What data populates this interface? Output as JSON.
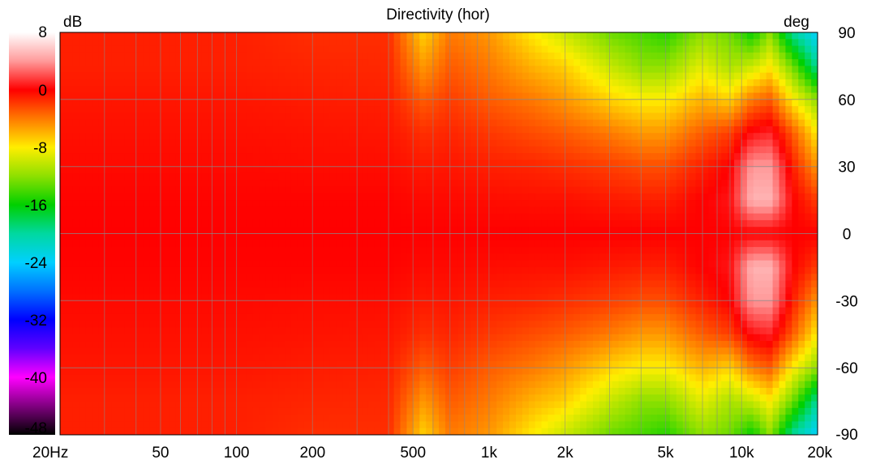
{
  "chart_data": {
    "type": "heatmap",
    "title": "Directivity (hor)",
    "colorbar": {
      "unit": "dB",
      "ticks": [
        "8",
        "0",
        "-8",
        "-16",
        "-24",
        "-32",
        "-40",
        "-48"
      ],
      "range": [
        -48,
        8
      ],
      "stops": [
        {
          "value": 8,
          "color": "#ffffff"
        },
        {
          "value": 4,
          "color": "#ff9a9a"
        },
        {
          "value": 0,
          "color": "#ff0000"
        },
        {
          "value": -4,
          "color": "#ff7a00"
        },
        {
          "value": -8,
          "color": "#ffee00"
        },
        {
          "value": -12,
          "color": "#8ee000"
        },
        {
          "value": -16,
          "color": "#00d000"
        },
        {
          "value": -20,
          "color": "#00d8a0"
        },
        {
          "value": -24,
          "color": "#00d0ff"
        },
        {
          "value": -28,
          "color": "#0070ff"
        },
        {
          "value": -32,
          "color": "#0000ff"
        },
        {
          "value": -36,
          "color": "#6000ff"
        },
        {
          "value": -40,
          "color": "#ff00ff"
        },
        {
          "value": -44,
          "color": "#800080"
        },
        {
          "value": -48,
          "color": "#000000"
        }
      ]
    },
    "x_axis": {
      "scale": "log",
      "range": [
        20,
        20000
      ],
      "unit": "Hz",
      "tick_labels": [
        {
          "value": 20,
          "label": "20Hz"
        },
        {
          "value": 50,
          "label": "50"
        },
        {
          "value": 100,
          "label": "100"
        },
        {
          "value": 200,
          "label": "200"
        },
        {
          "value": 500,
          "label": "500"
        },
        {
          "value": 1000,
          "label": "1k"
        },
        {
          "value": 2000,
          "label": "2k"
        },
        {
          "value": 5000,
          "label": "5k"
        },
        {
          "value": 10000,
          "label": "10k"
        },
        {
          "value": 20000,
          "label": "20k"
        }
      ],
      "gridlines": [
        30,
        40,
        50,
        60,
        70,
        80,
        90,
        100,
        200,
        300,
        400,
        500,
        600,
        700,
        800,
        900,
        1000,
        2000,
        3000,
        4000,
        5000,
        6000,
        7000,
        8000,
        9000,
        10000
      ]
    },
    "y_axis": {
      "label": "deg",
      "range": [
        -90,
        90
      ],
      "ticks": [
        90,
        60,
        30,
        0,
        -30,
        -60,
        -90
      ],
      "tick_labels": [
        "90",
        "60",
        "30",
        "0",
        "-30",
        "-60",
        "-90"
      ]
    },
    "grid": true,
    "colors": {
      "grid": "#8a8a8a",
      "frame": "#000000"
    },
    "angles_deg": [
      90,
      75,
      60,
      45,
      30,
      15,
      0,
      -15,
      -30,
      -45,
      -60,
      -75,
      -90
    ],
    "frequencies_hz": [
      20,
      50,
      100,
      200,
      400,
      550,
      700,
      1000,
      1500,
      2000,
      3000,
      4000,
      5000,
      7000,
      9000,
      11000,
      13000,
      16000,
      20000
    ],
    "rows_db": [
      [
        -1,
        -1,
        -1,
        -1.5,
        -1.5,
        -7,
        -4,
        -5,
        -8,
        -10,
        -13,
        -14,
        -15,
        -12,
        -13,
        -16,
        -12,
        -20,
        -24
      ],
      [
        -1,
        -1,
        -1,
        -1.2,
        -1.3,
        -5,
        -3,
        -4,
        -6,
        -7,
        -10,
        -12,
        -12,
        -9,
        -11,
        -10,
        -8,
        -13,
        -20
      ],
      [
        -0.7,
        -0.7,
        -0.7,
        -0.9,
        -1,
        -3,
        -2,
        -3,
        -4,
        -5,
        -7,
        -8,
        -8,
        -6,
        -7,
        -4,
        -3,
        -8,
        -12
      ],
      [
        -0.5,
        -0.5,
        -0.5,
        -0.6,
        -0.7,
        -1.5,
        -1.2,
        -1.8,
        -2.5,
        -3,
        -4,
        -5,
        -5,
        -3,
        -2,
        0.5,
        1,
        -3,
        -8
      ],
      [
        -0.3,
        -0.3,
        -0.3,
        -0.4,
        -0.4,
        -0.8,
        -0.7,
        -1,
        -1.2,
        -1.5,
        -2,
        -2.5,
        -2.5,
        -1,
        0,
        4,
        4,
        -1,
        -5
      ],
      [
        -0.1,
        -0.1,
        -0.1,
        -0.1,
        -0.1,
        -0.3,
        -0.3,
        -0.4,
        -0.5,
        -0.5,
        -0.8,
        -1,
        -1,
        0,
        0.5,
        5,
        5,
        0,
        -2
      ],
      [
        0,
        0,
        0,
        0,
        0,
        0,
        0,
        0,
        0,
        0,
        0,
        0,
        0,
        0,
        0,
        0,
        0,
        0,
        0
      ],
      [
        -0.1,
        -0.1,
        -0.1,
        -0.1,
        -0.1,
        -0.3,
        -0.3,
        -0.4,
        -0.5,
        -0.5,
        -0.8,
        -1,
        -1,
        0,
        0.5,
        5,
        5,
        0,
        -2
      ],
      [
        -0.3,
        -0.3,
        -0.3,
        -0.4,
        -0.4,
        -0.8,
        -0.7,
        -1,
        -1.2,
        -1.5,
        -2,
        -2.5,
        -2.5,
        -1,
        0,
        4,
        4,
        -1,
        -5
      ],
      [
        -0.5,
        -0.5,
        -0.5,
        -0.6,
        -0.7,
        -1.5,
        -1.2,
        -1.8,
        -2.5,
        -3,
        -4,
        -5,
        -5,
        -3,
        -2,
        0.5,
        1,
        -3,
        -8
      ],
      [
        -0.7,
        -0.7,
        -0.7,
        -0.9,
        -1,
        -3,
        -2,
        -3,
        -4,
        -5,
        -7,
        -8,
        -8,
        -6,
        -7,
        -4,
        -3,
        -8,
        -12
      ],
      [
        -1,
        -1,
        -1,
        -1.2,
        -1.3,
        -5,
        -3,
        -4,
        -6,
        -7,
        -10,
        -12,
        -12,
        -9,
        -11,
        -10,
        -8,
        -13,
        -20
      ],
      [
        -1,
        -1,
        -1,
        -1.5,
        -1.5,
        -7,
        -4,
        -5,
        -8,
        -10,
        -13,
        -14,
        -15,
        -12,
        -13,
        -16,
        -12,
        -20,
        -24
      ]
    ]
  }
}
